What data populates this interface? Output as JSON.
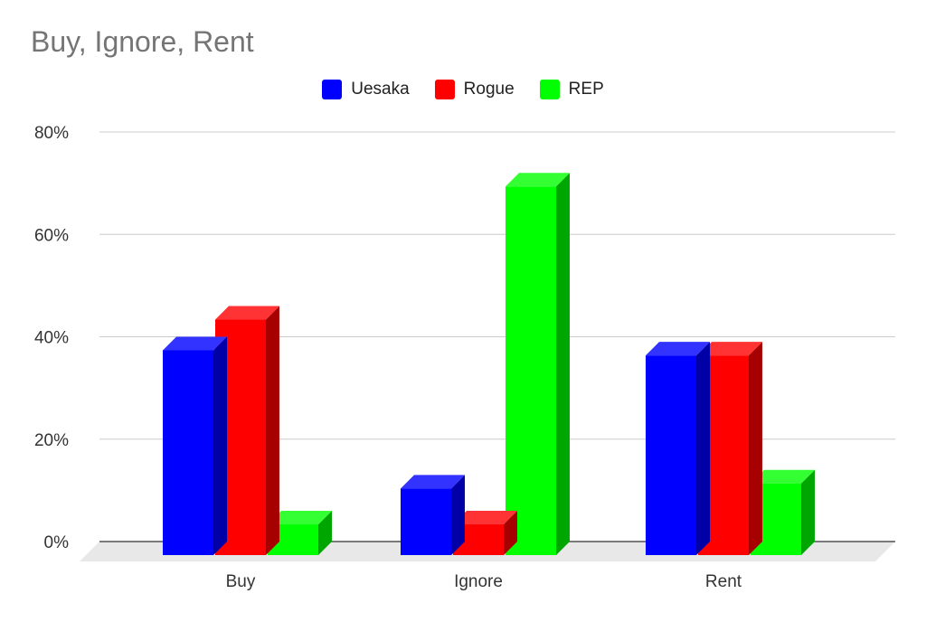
{
  "chart_data": {
    "type": "bar",
    "title": "Buy, Ignore, Rent",
    "categories": [
      "Buy",
      "Ignore",
      "Rent"
    ],
    "series": [
      {
        "name": "Uesaka",
        "color": "#0000ff",
        "values": [
          40,
          13,
          39
        ]
      },
      {
        "name": "Rogue",
        "color": "#ff0000",
        "values": [
          46,
          6,
          39
        ]
      },
      {
        "name": "REP",
        "color": "#00ff00",
        "values": [
          6,
          72,
          14
        ]
      }
    ],
    "ylim": [
      0,
      80
    ],
    "yticks": [
      "0%",
      "20%",
      "40%",
      "60%",
      "80%"
    ],
    "grid": true,
    "legend": "top",
    "style": "3d"
  }
}
